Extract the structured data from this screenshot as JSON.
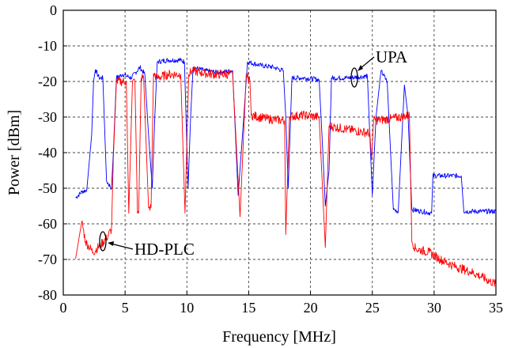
{
  "chart_data": {
    "type": "line",
    "title": "",
    "xlabel": "Frequency [MHz]",
    "ylabel": "Power [dBm]",
    "xlim": [
      0,
      35
    ],
    "ylim": [
      -80,
      0
    ],
    "xticks": [
      0,
      5,
      10,
      15,
      20,
      25,
      30,
      35
    ],
    "yticks": [
      0,
      -10,
      -20,
      -30,
      -40,
      -50,
      -60,
      -70,
      -80
    ],
    "xtick_labels": [
      "0",
      "5",
      "10",
      "15",
      "20",
      "25",
      "30",
      "35"
    ],
    "ytick_labels": [
      "0",
      "-10",
      "-20",
      "-30",
      "-40",
      "-50",
      "-60",
      "-70",
      "-80"
    ],
    "grid": true,
    "series": [
      {
        "name": "UPA",
        "color": "#0000ff",
        "x": [
          1.0,
          1.5,
          1.9,
          2.3,
          2.45,
          2.6,
          2.9,
          3.2,
          3.5,
          3.9,
          4.05,
          4.3,
          4.8,
          5.5,
          6.2,
          6.6,
          6.9,
          7.2,
          7.4,
          7.6,
          8.5,
          9.5,
          9.8,
          10.1,
          10.3,
          10.5,
          11.5,
          12.5,
          13.7,
          14.15,
          14.6,
          14.9,
          16,
          17,
          17.8,
          18.0,
          18.2,
          18.5,
          19.5,
          20.7,
          21.0,
          21.2,
          21.5,
          21.7,
          23,
          24.6,
          25.0,
          25.3,
          25.7,
          26.2,
          26.7,
          27.1,
          27.4,
          27.6,
          27.9,
          28.2,
          29.0,
          29.8,
          29.9,
          31,
          32.2,
          32.4,
          34,
          35
        ],
        "y": [
          -52.7,
          -51,
          -50.5,
          -35,
          -20,
          -16.7,
          -19,
          -19,
          -48,
          -50,
          -40,
          -19,
          -18,
          -19,
          -16,
          -18,
          -35,
          -50,
          -30,
          -14.5,
          -14,
          -14,
          -14.5,
          -50,
          -30,
          -16,
          -17,
          -17.5,
          -17,
          -52,
          -30,
          -14.5,
          -15.5,
          -16,
          -17,
          -30,
          -50,
          -19,
          -19,
          -19.5,
          -40,
          -55,
          -45,
          -19,
          -19,
          -18.5,
          -52,
          -30,
          -17,
          -20,
          -56,
          -56.5,
          -35,
          -21,
          -30,
          -56,
          -56.5,
          -57,
          -46.5,
          -46.5,
          -46.5,
          -56.5,
          -56.5,
          -56.5
        ]
      },
      {
        "name": "HD-PLC",
        "color": "#ff0000",
        "x": [
          1.0,
          1.5,
          1.8,
          2.4,
          3.0,
          3.5,
          3.9,
          4.05,
          4.3,
          5.1,
          5.3,
          5.6,
          5.8,
          6.0,
          6.1,
          6.3,
          6.5,
          6.9,
          7.1,
          7.3,
          7.6,
          8.5,
          9.5,
          9.85,
          10.15,
          10.4,
          12,
          13.7,
          14.3,
          14.8,
          15.1,
          15.2,
          16.5,
          17.9,
          18.0,
          18.3,
          19.5,
          20.7,
          21.2,
          21.5,
          23,
          24.8,
          24.95,
          25.1,
          26.5,
          28.0,
          28.2,
          28.5,
          29.6,
          30.5,
          31.7,
          33,
          33.9,
          35
        ],
        "y": [
          -69.8,
          -59.3,
          -65,
          -68,
          -66,
          -64,
          -61.5,
          -41.5,
          -20,
          -20,
          -57,
          -20,
          -20,
          -57,
          -57,
          -19,
          -19,
          -55.4,
          -55.4,
          -17.8,
          -19,
          -18,
          -18,
          -57,
          -18,
          -17,
          -18,
          -18,
          -58,
          -18,
          -20,
          -29.5,
          -30.5,
          -31,
          -63,
          -29.8,
          -29.5,
          -30,
          -66.7,
          -32.5,
          -33.5,
          -34.5,
          -42,
          -31,
          -30.5,
          -29.5,
          -65,
          -67,
          -68,
          -70,
          -72,
          -73.5,
          -75,
          -77
        ]
      }
    ],
    "annotations": [
      {
        "text": "UPA",
        "series": "UPA",
        "at_x": 23.5
      },
      {
        "text": "HD-PLC",
        "series": "HD-PLC",
        "at_x": 3.2
      }
    ]
  }
}
